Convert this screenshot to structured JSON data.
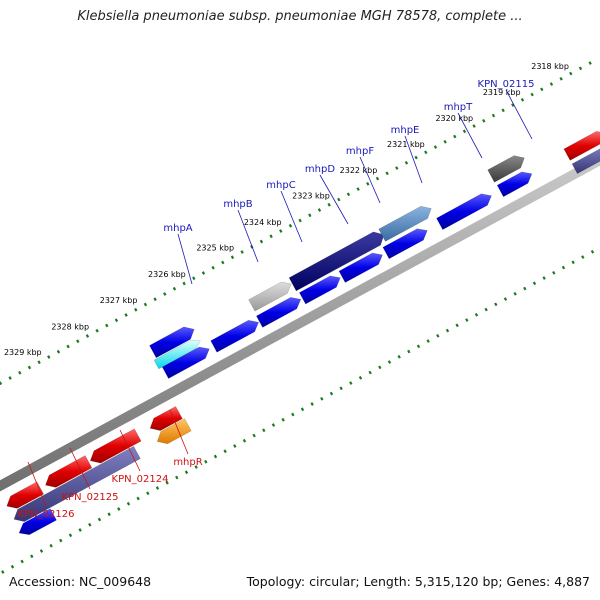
{
  "title": "Klebsiella pneumoniae subsp. pneumoniae MGH 78578, complete ...",
  "footer": {
    "accession": "Accession: NC_009648",
    "topology": "Topology: circular; Length: 5,315,120 bp; Genes: 4,887"
  },
  "colors": {
    "forward_label": "#1a1ab8",
    "reverse_label": "#cc1111",
    "tick": "#1e7a1e",
    "backbone": "#8a8a8a"
  },
  "scale_labels": [
    "2329 kbp",
    "2328 kbp",
    "2327 kbp",
    "2326 kbp",
    "2325 kbp",
    "2324 kbp",
    "2323 kbp",
    "2322 kbp",
    "2321 kbp",
    "2320 kbp",
    "2319 kbp",
    "2318 kbp"
  ],
  "forward_gene_labels": [
    "mhpA",
    "mhpB",
    "mhpC",
    "mhpD",
    "mhpF",
    "mhpE",
    "mhpT",
    "KPN_02115"
  ],
  "reverse_gene_labels": [
    "KPN_02126",
    "KPN_02125",
    "KPN_02124",
    "mhpR"
  ]
}
